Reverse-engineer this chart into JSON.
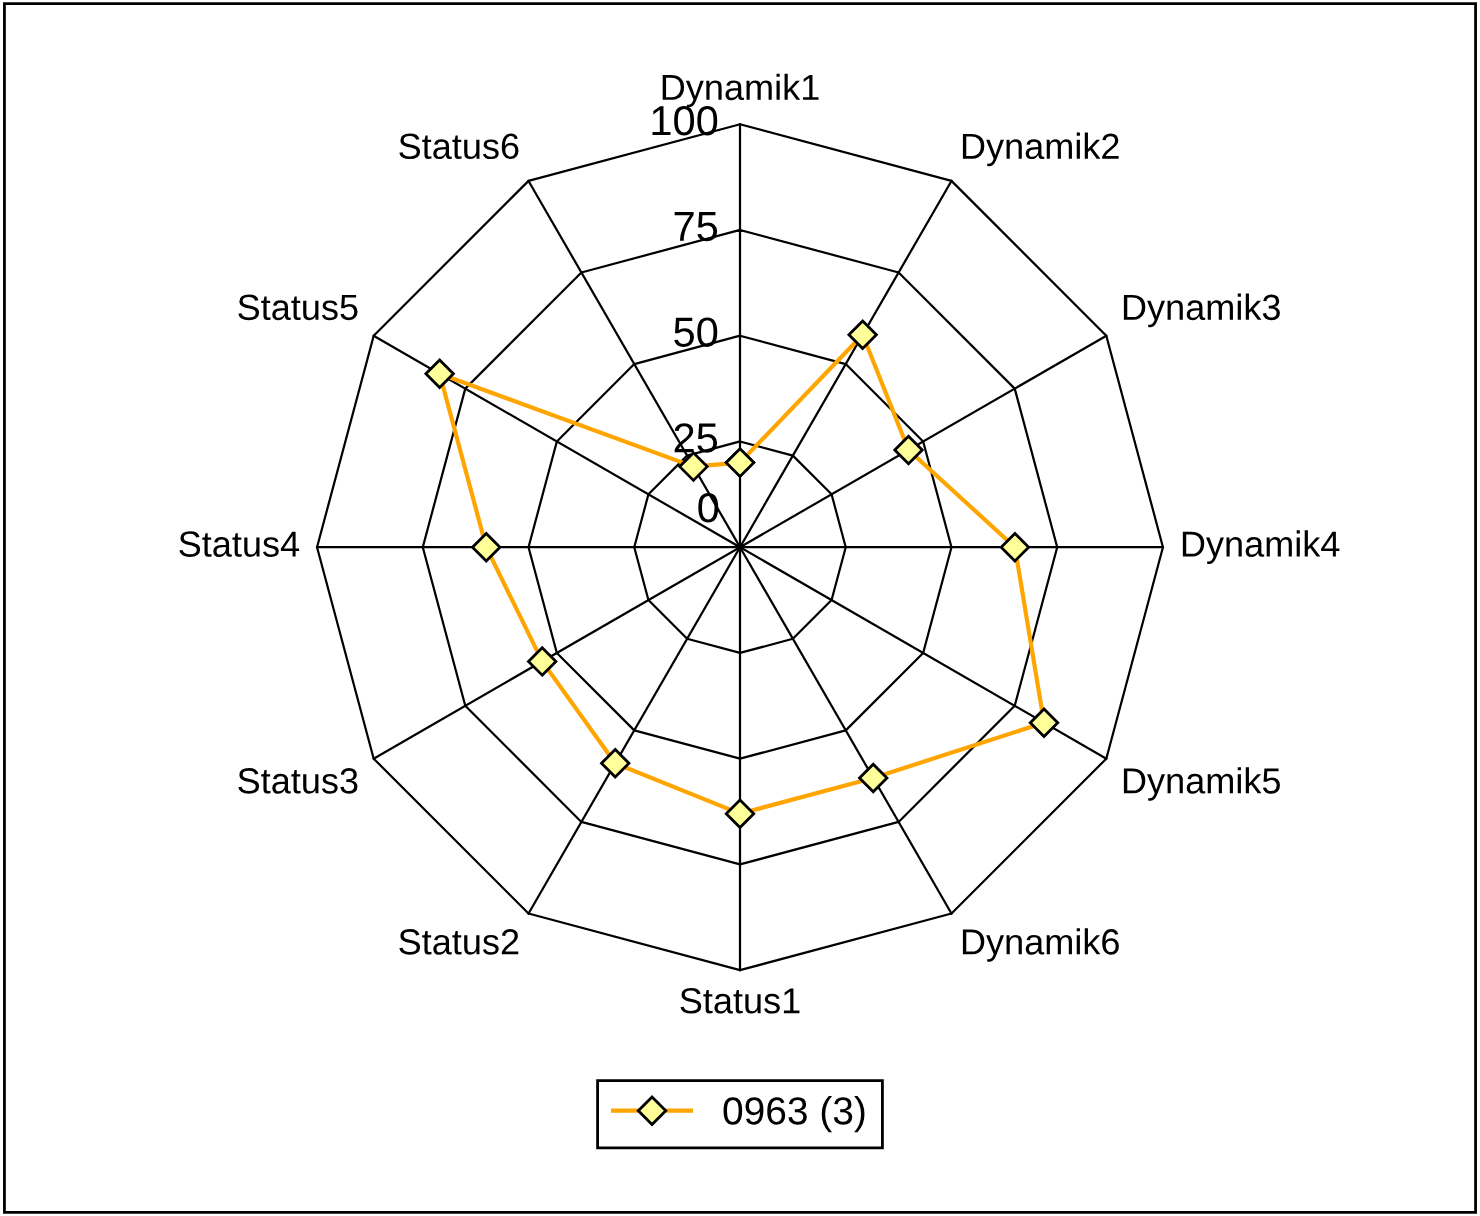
{
  "chart_data": {
    "type": "radar",
    "categories": [
      "Dynamik1",
      "Dynamik2",
      "Dynamik3",
      "Dynamik4",
      "Dynamik5",
      "Dynamik6",
      "Status1",
      "Status2",
      "Status3",
      "Status4",
      "Status5",
      "Status6"
    ],
    "series": [
      {
        "name": "0963 (3)",
        "color": "#ffa500",
        "values": [
          20,
          58,
          46,
          65,
          83,
          63,
          63,
          59,
          54,
          60,
          82,
          22
        ]
      }
    ],
    "ylim": [
      0,
      100
    ],
    "yticks": [
      0,
      25,
      50,
      75,
      100
    ],
    "grid": true,
    "legend": "bottom",
    "marker": "diamond",
    "line_style": "solid"
  }
}
